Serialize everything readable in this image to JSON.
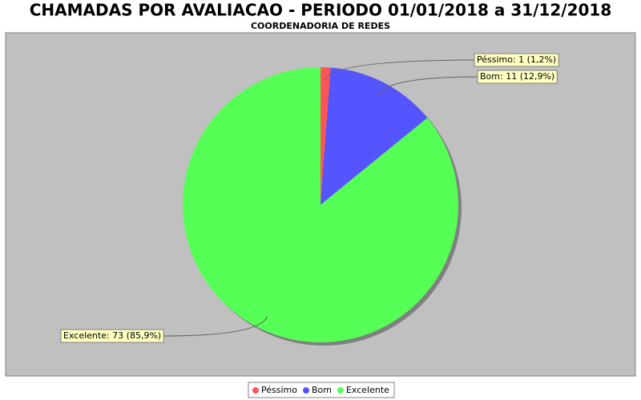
{
  "chart_data": {
    "type": "pie",
    "title": "CHAMADAS POR AVALIACAO - PERIODO 01/01/2018 a 31/12/2018",
    "subtitle": "COORDENADORIA DE REDES",
    "categories": [
      "Péssimo",
      "Bom",
      "Excelente"
    ],
    "values": [
      1,
      11,
      73
    ],
    "value_labels": [
      "Péssimo: 1 (1,2%)",
      "Bom: 11 (12,9%)",
      "Excelente: 73 (85,9%)"
    ],
    "colors": [
      "#ff5555",
      "#5555ff",
      "#55ff55"
    ]
  }
}
